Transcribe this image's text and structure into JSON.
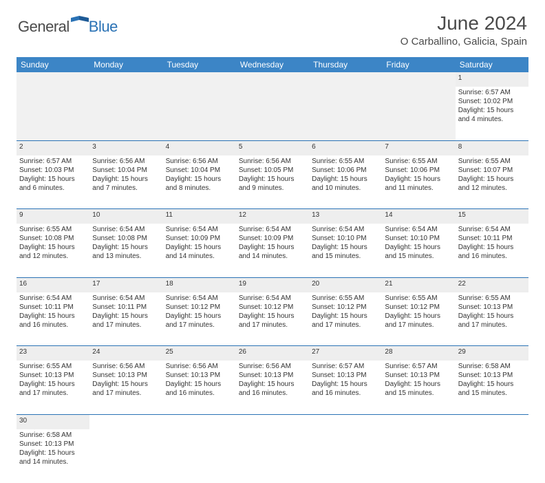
{
  "brand": {
    "part1": "General",
    "part2": "Blue"
  },
  "title": "June 2024",
  "location": "O Carballino, Galicia, Spain",
  "colors": {
    "header_bg": "#3c85c6",
    "rule": "#2a72b5",
    "daynum_bg": "#eeeeee",
    "text": "#333333",
    "title_text": "#4a4a4a"
  },
  "weekdays": [
    "Sunday",
    "Monday",
    "Tuesday",
    "Wednesday",
    "Thursday",
    "Friday",
    "Saturday"
  ],
  "weeks": [
    [
      null,
      null,
      null,
      null,
      null,
      null,
      {
        "n": "1",
        "sr": "Sunrise: 6:57 AM",
        "ss": "Sunset: 10:02 PM",
        "d1": "Daylight: 15 hours",
        "d2": "and 4 minutes."
      }
    ],
    [
      {
        "n": "2",
        "sr": "Sunrise: 6:57 AM",
        "ss": "Sunset: 10:03 PM",
        "d1": "Daylight: 15 hours",
        "d2": "and 6 minutes."
      },
      {
        "n": "3",
        "sr": "Sunrise: 6:56 AM",
        "ss": "Sunset: 10:04 PM",
        "d1": "Daylight: 15 hours",
        "d2": "and 7 minutes."
      },
      {
        "n": "4",
        "sr": "Sunrise: 6:56 AM",
        "ss": "Sunset: 10:04 PM",
        "d1": "Daylight: 15 hours",
        "d2": "and 8 minutes."
      },
      {
        "n": "5",
        "sr": "Sunrise: 6:56 AM",
        "ss": "Sunset: 10:05 PM",
        "d1": "Daylight: 15 hours",
        "d2": "and 9 minutes."
      },
      {
        "n": "6",
        "sr": "Sunrise: 6:55 AM",
        "ss": "Sunset: 10:06 PM",
        "d1": "Daylight: 15 hours",
        "d2": "and 10 minutes."
      },
      {
        "n": "7",
        "sr": "Sunrise: 6:55 AM",
        "ss": "Sunset: 10:06 PM",
        "d1": "Daylight: 15 hours",
        "d2": "and 11 minutes."
      },
      {
        "n": "8",
        "sr": "Sunrise: 6:55 AM",
        "ss": "Sunset: 10:07 PM",
        "d1": "Daylight: 15 hours",
        "d2": "and 12 minutes."
      }
    ],
    [
      {
        "n": "9",
        "sr": "Sunrise: 6:55 AM",
        "ss": "Sunset: 10:08 PM",
        "d1": "Daylight: 15 hours",
        "d2": "and 12 minutes."
      },
      {
        "n": "10",
        "sr": "Sunrise: 6:54 AM",
        "ss": "Sunset: 10:08 PM",
        "d1": "Daylight: 15 hours",
        "d2": "and 13 minutes."
      },
      {
        "n": "11",
        "sr": "Sunrise: 6:54 AM",
        "ss": "Sunset: 10:09 PM",
        "d1": "Daylight: 15 hours",
        "d2": "and 14 minutes."
      },
      {
        "n": "12",
        "sr": "Sunrise: 6:54 AM",
        "ss": "Sunset: 10:09 PM",
        "d1": "Daylight: 15 hours",
        "d2": "and 14 minutes."
      },
      {
        "n": "13",
        "sr": "Sunrise: 6:54 AM",
        "ss": "Sunset: 10:10 PM",
        "d1": "Daylight: 15 hours",
        "d2": "and 15 minutes."
      },
      {
        "n": "14",
        "sr": "Sunrise: 6:54 AM",
        "ss": "Sunset: 10:10 PM",
        "d1": "Daylight: 15 hours",
        "d2": "and 15 minutes."
      },
      {
        "n": "15",
        "sr": "Sunrise: 6:54 AM",
        "ss": "Sunset: 10:11 PM",
        "d1": "Daylight: 15 hours",
        "d2": "and 16 minutes."
      }
    ],
    [
      {
        "n": "16",
        "sr": "Sunrise: 6:54 AM",
        "ss": "Sunset: 10:11 PM",
        "d1": "Daylight: 15 hours",
        "d2": "and 16 minutes."
      },
      {
        "n": "17",
        "sr": "Sunrise: 6:54 AM",
        "ss": "Sunset: 10:11 PM",
        "d1": "Daylight: 15 hours",
        "d2": "and 17 minutes."
      },
      {
        "n": "18",
        "sr": "Sunrise: 6:54 AM",
        "ss": "Sunset: 10:12 PM",
        "d1": "Daylight: 15 hours",
        "d2": "and 17 minutes."
      },
      {
        "n": "19",
        "sr": "Sunrise: 6:54 AM",
        "ss": "Sunset: 10:12 PM",
        "d1": "Daylight: 15 hours",
        "d2": "and 17 minutes."
      },
      {
        "n": "20",
        "sr": "Sunrise: 6:55 AM",
        "ss": "Sunset: 10:12 PM",
        "d1": "Daylight: 15 hours",
        "d2": "and 17 minutes."
      },
      {
        "n": "21",
        "sr": "Sunrise: 6:55 AM",
        "ss": "Sunset: 10:12 PM",
        "d1": "Daylight: 15 hours",
        "d2": "and 17 minutes."
      },
      {
        "n": "22",
        "sr": "Sunrise: 6:55 AM",
        "ss": "Sunset: 10:13 PM",
        "d1": "Daylight: 15 hours",
        "d2": "and 17 minutes."
      }
    ],
    [
      {
        "n": "23",
        "sr": "Sunrise: 6:55 AM",
        "ss": "Sunset: 10:13 PM",
        "d1": "Daylight: 15 hours",
        "d2": "and 17 minutes."
      },
      {
        "n": "24",
        "sr": "Sunrise: 6:56 AM",
        "ss": "Sunset: 10:13 PM",
        "d1": "Daylight: 15 hours",
        "d2": "and 17 minutes."
      },
      {
        "n": "25",
        "sr": "Sunrise: 6:56 AM",
        "ss": "Sunset: 10:13 PM",
        "d1": "Daylight: 15 hours",
        "d2": "and 16 minutes."
      },
      {
        "n": "26",
        "sr": "Sunrise: 6:56 AM",
        "ss": "Sunset: 10:13 PM",
        "d1": "Daylight: 15 hours",
        "d2": "and 16 minutes."
      },
      {
        "n": "27",
        "sr": "Sunrise: 6:57 AM",
        "ss": "Sunset: 10:13 PM",
        "d1": "Daylight: 15 hours",
        "d2": "and 16 minutes."
      },
      {
        "n": "28",
        "sr": "Sunrise: 6:57 AM",
        "ss": "Sunset: 10:13 PM",
        "d1": "Daylight: 15 hours",
        "d2": "and 15 minutes."
      },
      {
        "n": "29",
        "sr": "Sunrise: 6:58 AM",
        "ss": "Sunset: 10:13 PM",
        "d1": "Daylight: 15 hours",
        "d2": "and 15 minutes."
      }
    ],
    [
      {
        "n": "30",
        "sr": "Sunrise: 6:58 AM",
        "ss": "Sunset: 10:13 PM",
        "d1": "Daylight: 15 hours",
        "d2": "and 14 minutes."
      },
      null,
      null,
      null,
      null,
      null,
      null
    ]
  ]
}
